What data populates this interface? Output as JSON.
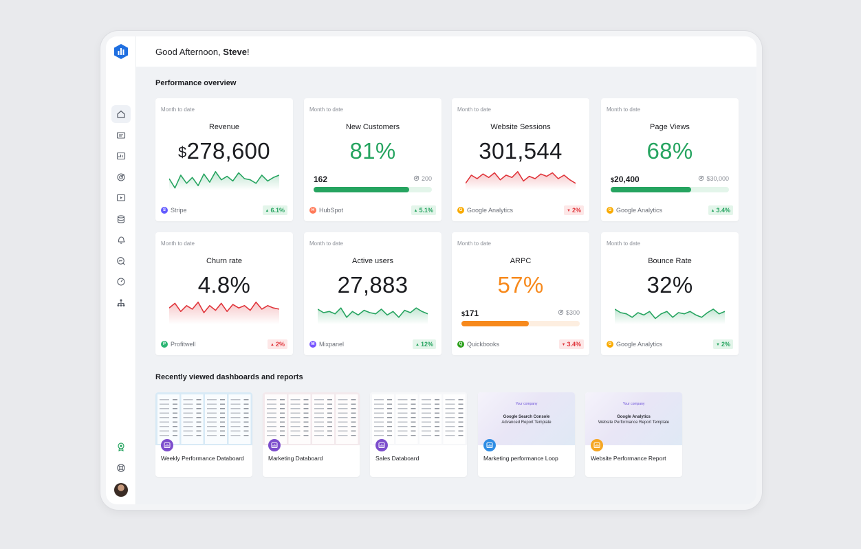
{
  "greeting": {
    "prefix": "Good Afternoon, ",
    "name": "Steve",
    "suffix": "!"
  },
  "sections": {
    "overview": "Performance overview",
    "recent": "Recently viewed dashboards and reports"
  },
  "sidebar": {
    "items": [
      {
        "icon": "home-icon",
        "active": true
      },
      {
        "icon": "number-widget-icon"
      },
      {
        "icon": "dashboard-icon"
      },
      {
        "icon": "goals-target-icon"
      },
      {
        "icon": "presentation-icon"
      },
      {
        "icon": "data-stack-icon"
      },
      {
        "icon": "alerts-bell-icon"
      },
      {
        "icon": "metrics-explore-icon"
      },
      {
        "icon": "benchmarks-gauge-icon"
      },
      {
        "icon": "team-hierarchy-icon"
      }
    ],
    "bottom": [
      {
        "icon": "rewards-badge-icon"
      },
      {
        "icon": "help-lifebuoy-icon"
      }
    ]
  },
  "colors": {
    "green": "#26a460",
    "red": "#e0353b",
    "orange": "#f7891c",
    "track_green": "#e3f5ea",
    "track_orange": "#fdeee0"
  },
  "cards": [
    {
      "period": "Month to date",
      "title": "Revenue",
      "value_prefix": "$",
      "value": "278,600",
      "value_color": "default",
      "spark": "green",
      "spark_pts": [
        38,
        22,
        44,
        30,
        40,
        26,
        46,
        32,
        50,
        36,
        42,
        34,
        48,
        38,
        36,
        30,
        44,
        34,
        40,
        44
      ],
      "source": "Stripe",
      "source_icon": "stripe-icon",
      "delta": "6.1%",
      "dir": "up"
    },
    {
      "period": "Month to date",
      "title": "New Customers",
      "value": "81%",
      "value_color": "green",
      "progress": {
        "left": "162",
        "right": "200",
        "fraction": 0.81,
        "color": "green"
      },
      "source": "HubSpot",
      "source_icon": "hubspot-icon",
      "delta": "5.1%",
      "dir": "up"
    },
    {
      "period": "Month to date",
      "title": "Website Sessions",
      "value": "301,544",
      "value_color": "default",
      "spark": "red",
      "spark_pts": [
        30,
        44,
        38,
        46,
        40,
        48,
        36,
        44,
        40,
        50,
        34,
        42,
        38,
        46,
        42,
        48,
        38,
        44,
        36,
        30
      ],
      "source": "Google Analytics",
      "source_icon": "google-analytics-icon",
      "delta": "2%",
      "dir": "down"
    },
    {
      "period": "Month to date",
      "title": "Page Views",
      "value": "68%",
      "value_color": "green",
      "progress": {
        "left_prefix": "$",
        "left": "20,400",
        "right": "$30,000",
        "fraction": 0.68,
        "color": "green"
      },
      "source": "Google Analytics",
      "source_icon": "google-analytics-icon",
      "delta": "3.4%",
      "dir": "up"
    },
    {
      "period": "Month to date",
      "title": "Churn rate",
      "value": "4.8%",
      "value_color": "default",
      "spark": "red",
      "spark_pts": [
        46,
        54,
        40,
        50,
        44,
        56,
        38,
        50,
        42,
        54,
        40,
        52,
        46,
        50,
        42,
        56,
        44,
        50,
        46,
        44
      ],
      "source": "Profitwell",
      "source_icon": "profitwell-icon",
      "delta": "2%",
      "dir": "up-red"
    },
    {
      "period": "Month to date",
      "title": "Active users",
      "value": "27,883",
      "value_color": "default",
      "spark": "green",
      "spark_pts": [
        44,
        38,
        40,
        36,
        46,
        30,
        40,
        34,
        42,
        38,
        36,
        44,
        34,
        40,
        30,
        42,
        38,
        46,
        40,
        36
      ],
      "source": "Mixpanel",
      "source_icon": "mixpanel-icon",
      "delta": "12%",
      "dir": "up"
    },
    {
      "period": "Month to date",
      "title": "ARPC",
      "value": "57%",
      "value_color": "orange",
      "progress": {
        "left_prefix": "$",
        "left": "171",
        "right": "$300",
        "fraction": 0.57,
        "color": "orange"
      },
      "source": "Quickbooks",
      "source_icon": "quickbooks-icon",
      "delta": "3.4%",
      "dir": "down"
    },
    {
      "period": "Month to date",
      "title": "Bounce Rate",
      "value": "32%",
      "value_color": "default",
      "spark": "green",
      "spark_pts": [
        44,
        38,
        36,
        30,
        38,
        34,
        40,
        28,
        36,
        40,
        30,
        38,
        36,
        40,
        34,
        30,
        38,
        44,
        36,
        40
      ],
      "source": "Google Analytics",
      "source_icon": "google-analytics-icon",
      "delta": "2%",
      "dir": "down-green"
    }
  ],
  "recent": [
    {
      "name": "Weekly Performance Databoard",
      "badge": "databoard-icon",
      "badge_color": "#7c4dcc",
      "preview": "dashboard-blue"
    },
    {
      "name": "Marketing Databoard",
      "badge": "databoard-icon",
      "badge_color": "#7c4dcc",
      "preview": "dashboard-pink"
    },
    {
      "name": "Sales Databoard",
      "badge": "databoard-icon",
      "badge_color": "#7c4dcc",
      "preview": "dashboard-white"
    },
    {
      "name": "Marketing performance Loop",
      "badge": "loop-icon",
      "badge_color": "#2f8de4",
      "preview": "template",
      "preview_company": "Your company",
      "preview_title": "Google Search Console",
      "preview_subtitle": "Advanced Report Template"
    },
    {
      "name": "Website Performance Report",
      "badge": "report-icon",
      "badge_color": "#f5a623",
      "preview": "template",
      "preview_company": "Your company",
      "preview_title": "Google Analytics",
      "preview_subtitle": "Website Performance Report Template"
    }
  ]
}
